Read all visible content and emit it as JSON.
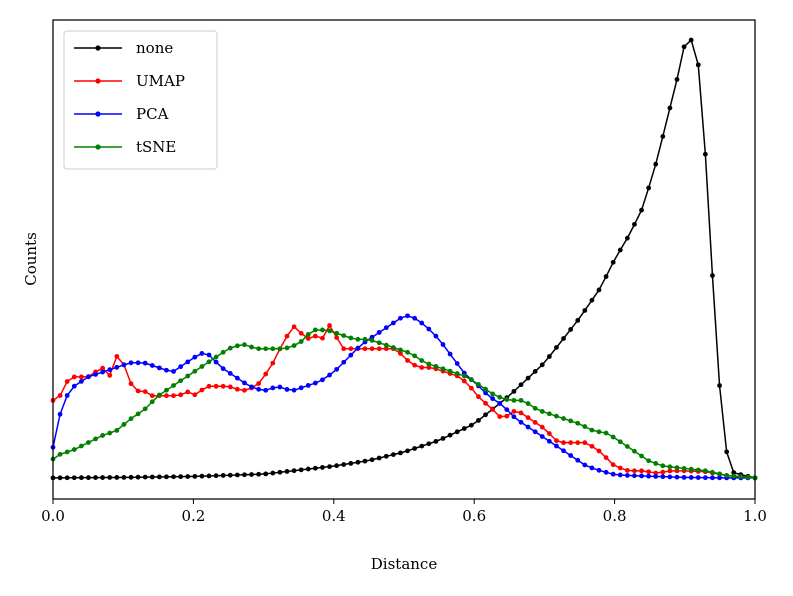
{
  "chart_data": {
    "type": "line",
    "title": "",
    "xlabel": "Distance",
    "ylabel": "Counts",
    "xlim": [
      0.0,
      1.0
    ],
    "ylim": [
      -0.02,
      1.0
    ],
    "xticks": [
      "0.0",
      "0.2",
      "0.4",
      "0.6",
      "0.8",
      "1.0"
    ],
    "yticks_visible": false,
    "grid": false,
    "legend_position": "upper-left",
    "series": [
      {
        "name": "none",
        "color": "#000000",
        "points": [
          [
            0.0,
            0.025
          ],
          [
            0.1,
            0.026
          ],
          [
            0.2,
            0.028
          ],
          [
            0.3,
            0.033
          ],
          [
            0.4,
            0.05
          ],
          [
            0.45,
            0.062
          ],
          [
            0.5,
            0.08
          ],
          [
            0.55,
            0.105
          ],
          [
            0.6,
            0.14
          ],
          [
            0.65,
            0.2
          ],
          [
            0.7,
            0.27
          ],
          [
            0.75,
            0.365
          ],
          [
            0.78,
            0.43
          ],
          [
            0.8,
            0.49
          ],
          [
            0.82,
            0.54
          ],
          [
            0.84,
            0.6
          ],
          [
            0.86,
            0.7
          ],
          [
            0.88,
            0.82
          ],
          [
            0.89,
            0.88
          ],
          [
            0.9,
            0.95
          ],
          [
            0.905,
            0.968
          ],
          [
            0.91,
            0.955
          ],
          [
            0.92,
            0.9
          ],
          [
            0.93,
            0.7
          ],
          [
            0.94,
            0.44
          ],
          [
            0.95,
            0.21
          ],
          [
            0.96,
            0.075
          ],
          [
            0.97,
            0.035
          ],
          [
            1.0,
            0.025
          ]
        ]
      },
      {
        "name": "UMAP",
        "color": "#ff0000",
        "points": [
          [
            0.0,
            0.19
          ],
          [
            0.01,
            0.2
          ],
          [
            0.02,
            0.23
          ],
          [
            0.03,
            0.24
          ],
          [
            0.05,
            0.24
          ],
          [
            0.07,
            0.26
          ],
          [
            0.08,
            0.24
          ],
          [
            0.095,
            0.3
          ],
          [
            0.1,
            0.27
          ],
          [
            0.115,
            0.21
          ],
          [
            0.13,
            0.21
          ],
          [
            0.14,
            0.2
          ],
          [
            0.16,
            0.2
          ],
          [
            0.18,
            0.2
          ],
          [
            0.19,
            0.21
          ],
          [
            0.2,
            0.2
          ],
          [
            0.22,
            0.22
          ],
          [
            0.25,
            0.22
          ],
          [
            0.27,
            0.21
          ],
          [
            0.29,
            0.22
          ],
          [
            0.31,
            0.26
          ],
          [
            0.33,
            0.32
          ],
          [
            0.345,
            0.35
          ],
          [
            0.36,
            0.32
          ],
          [
            0.38,
            0.33
          ],
          [
            0.39,
            0.31
          ],
          [
            0.395,
            0.36
          ],
          [
            0.41,
            0.3
          ],
          [
            0.43,
            0.3
          ],
          [
            0.46,
            0.3
          ],
          [
            0.49,
            0.3
          ],
          [
            0.5,
            0.28
          ],
          [
            0.52,
            0.26
          ],
          [
            0.54,
            0.26
          ],
          [
            0.56,
            0.25
          ],
          [
            0.58,
            0.24
          ],
          [
            0.6,
            0.21
          ],
          [
            0.61,
            0.19
          ],
          [
            0.62,
            0.18
          ],
          [
            0.64,
            0.15
          ],
          [
            0.66,
            0.17
          ],
          [
            0.68,
            0.15
          ],
          [
            0.7,
            0.13
          ],
          [
            0.72,
            0.1
          ],
          [
            0.74,
            0.1
          ],
          [
            0.76,
            0.1
          ],
          [
            0.78,
            0.08
          ],
          [
            0.8,
            0.05
          ],
          [
            0.82,
            0.04
          ],
          [
            0.84,
            0.04
          ],
          [
            0.86,
            0.035
          ],
          [
            0.88,
            0.04
          ],
          [
            0.9,
            0.04
          ],
          [
            0.93,
            0.038
          ],
          [
            0.96,
            0.03
          ],
          [
            1.0,
            0.025
          ]
        ]
      },
      {
        "name": "PCA",
        "color": "#0000ff",
        "points": [
          [
            0.0,
            0.09
          ],
          [
            0.01,
            0.16
          ],
          [
            0.02,
            0.2
          ],
          [
            0.03,
            0.22
          ],
          [
            0.05,
            0.24
          ],
          [
            0.07,
            0.25
          ],
          [
            0.09,
            0.26
          ],
          [
            0.11,
            0.27
          ],
          [
            0.13,
            0.27
          ],
          [
            0.15,
            0.26
          ],
          [
            0.17,
            0.25
          ],
          [
            0.19,
            0.27
          ],
          [
            0.21,
            0.29
          ],
          [
            0.22,
            0.29
          ],
          [
            0.24,
            0.26
          ],
          [
            0.26,
            0.24
          ],
          [
            0.28,
            0.22
          ],
          [
            0.3,
            0.21
          ],
          [
            0.32,
            0.22
          ],
          [
            0.34,
            0.21
          ],
          [
            0.36,
            0.22
          ],
          [
            0.38,
            0.23
          ],
          [
            0.4,
            0.25
          ],
          [
            0.42,
            0.28
          ],
          [
            0.44,
            0.31
          ],
          [
            0.46,
            0.33
          ],
          [
            0.48,
            0.35
          ],
          [
            0.5,
            0.37
          ],
          [
            0.51,
            0.37
          ],
          [
            0.53,
            0.35
          ],
          [
            0.55,
            0.32
          ],
          [
            0.57,
            0.28
          ],
          [
            0.59,
            0.24
          ],
          [
            0.6,
            0.23
          ],
          [
            0.62,
            0.2
          ],
          [
            0.64,
            0.18
          ],
          [
            0.66,
            0.15
          ],
          [
            0.68,
            0.13
          ],
          [
            0.7,
            0.11
          ],
          [
            0.72,
            0.09
          ],
          [
            0.74,
            0.07
          ],
          [
            0.76,
            0.05
          ],
          [
            0.78,
            0.04
          ],
          [
            0.8,
            0.032
          ],
          [
            0.82,
            0.03
          ],
          [
            0.86,
            0.028
          ],
          [
            0.9,
            0.026
          ],
          [
            0.95,
            0.025
          ],
          [
            1.0,
            0.025
          ]
        ]
      },
      {
        "name": "tSNE",
        "color": "#008000",
        "points": [
          [
            0.0,
            0.065
          ],
          [
            0.01,
            0.075
          ],
          [
            0.03,
            0.085
          ],
          [
            0.05,
            0.1
          ],
          [
            0.07,
            0.115
          ],
          [
            0.09,
            0.125
          ],
          [
            0.11,
            0.15
          ],
          [
            0.13,
            0.17
          ],
          [
            0.15,
            0.2
          ],
          [
            0.17,
            0.22
          ],
          [
            0.19,
            0.24
          ],
          [
            0.21,
            0.26
          ],
          [
            0.23,
            0.28
          ],
          [
            0.25,
            0.3
          ],
          [
            0.27,
            0.31
          ],
          [
            0.29,
            0.3
          ],
          [
            0.31,
            0.3
          ],
          [
            0.33,
            0.3
          ],
          [
            0.35,
            0.31
          ],
          [
            0.37,
            0.34
          ],
          [
            0.39,
            0.34
          ],
          [
            0.41,
            0.33
          ],
          [
            0.43,
            0.32
          ],
          [
            0.45,
            0.32
          ],
          [
            0.47,
            0.31
          ],
          [
            0.49,
            0.3
          ],
          [
            0.51,
            0.29
          ],
          [
            0.53,
            0.27
          ],
          [
            0.55,
            0.26
          ],
          [
            0.57,
            0.25
          ],
          [
            0.59,
            0.24
          ],
          [
            0.61,
            0.22
          ],
          [
            0.63,
            0.2
          ],
          [
            0.65,
            0.19
          ],
          [
            0.67,
            0.19
          ],
          [
            0.69,
            0.17
          ],
          [
            0.71,
            0.16
          ],
          [
            0.73,
            0.15
          ],
          [
            0.75,
            0.14
          ],
          [
            0.77,
            0.125
          ],
          [
            0.79,
            0.12
          ],
          [
            0.81,
            0.1
          ],
          [
            0.83,
            0.08
          ],
          [
            0.85,
            0.06
          ],
          [
            0.87,
            0.05
          ],
          [
            0.9,
            0.045
          ],
          [
            0.93,
            0.04
          ],
          [
            0.96,
            0.03
          ],
          [
            1.0,
            0.025
          ]
        ]
      }
    ]
  }
}
